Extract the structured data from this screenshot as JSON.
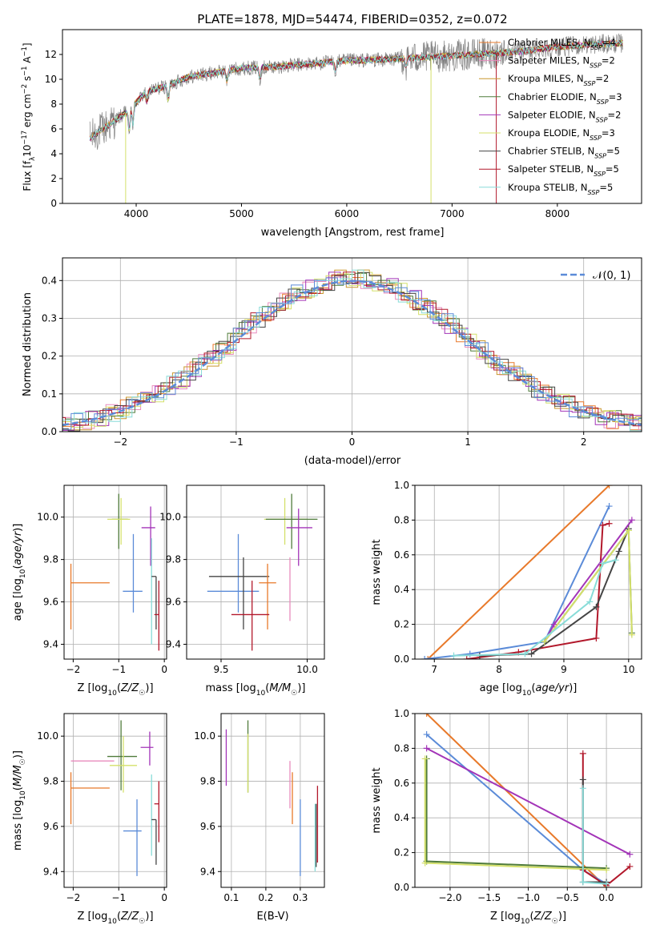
{
  "colors": {
    "orange": "#e8792a",
    "pink": "#e88bbd",
    "amber": "#c9972e",
    "olive": "#4f7b3a",
    "purple": "#a334b8",
    "yellow": "#d4e06a",
    "dgray": "#444444",
    "red": "#b2182b",
    "cyan": "#88dcd8",
    "blue": "#5b8bd8",
    "data_gray": "#808080"
  },
  "chart_data": [
    {
      "type": "line",
      "title": "PLATE=1878, MJD=54474, FIBERID=0352, z=0.072",
      "xlabel": "wavelength [Angstrom, rest frame]",
      "ylabel": "Flux [f_λ 10^-17 erg cm^-2 s^-1 A^-1]",
      "xlim": [
        3300,
        8800
      ],
      "ylim": [
        0,
        14
      ],
      "xticks": [
        "4000",
        "5000",
        "6000",
        "7000",
        "8000"
      ],
      "yticks": [
        "0",
        "2",
        "4",
        "6",
        "8",
        "10",
        "12"
      ],
      "legend_position": "right",
      "series": [
        {
          "name": "Chabrier MILES, N_SSP=4",
          "color": "orange"
        },
        {
          "name": "Salpeter MILES, N_SSP=2",
          "color": "pink"
        },
        {
          "name": "Kroupa MILES, N_SSP=2",
          "color": "amber"
        },
        {
          "name": "Chabrier ELODIE, N_SSP=3",
          "color": "olive"
        },
        {
          "name": "Salpeter ELODIE, N_SSP=2",
          "color": "purple"
        },
        {
          "name": "Kroupa ELODIE, N_SSP=3",
          "color": "yellow"
        },
        {
          "name": "Chabrier STELIB, N_SSP=5",
          "color": "dgray"
        },
        {
          "name": "Salpeter STELIB, N_SSP=5",
          "color": "red"
        },
        {
          "name": "Kroupa STELIB, N_SSP=5",
          "color": "cyan"
        }
      ],
      "approx_continuum": {
        "x": [
          3550,
          3700,
          3900,
          4100,
          4300,
          4500,
          4800,
          5000,
          5300,
          5600,
          6000,
          6400,
          6800,
          7200,
          7600,
          8000,
          8300,
          8600
        ],
        "y": [
          5.2,
          6.1,
          7.3,
          9.0,
          9.5,
          10.2,
          10.6,
          10.9,
          11.0,
          11.2,
          11.5,
          11.6,
          11.8,
          12.0,
          12.2,
          12.6,
          12.8,
          12.9
        ]
      }
    },
    {
      "type": "line",
      "xlabel": "(data-model)/error",
      "ylabel": "Normed distribution",
      "xlim": [
        -2.5,
        2.5
      ],
      "ylim": [
        0,
        0.46
      ],
      "xticks": [
        "−2",
        "−1",
        "0",
        "1",
        "2"
      ],
      "yticks": [
        "0.0",
        "0.1",
        "0.2",
        "0.3",
        "0.4"
      ],
      "grid": true,
      "legend_position": "top-right",
      "reference_label": "𝒩(0, 1)",
      "reference_color": "blue",
      "histogram_bin_width": 0.1
    },
    {
      "type": "scatter",
      "xlabel": "Z [log10(Z/Z☉)]",
      "ylabel": "age [log10(age/yr)]",
      "xlim": [
        -2.2,
        0.05
      ],
      "ylim": [
        9.33,
        10.15
      ],
      "xticks": [
        "−2",
        "−1",
        "0"
      ],
      "yticks": [
        "9.4",
        "9.6",
        "9.8",
        "10.0"
      ],
      "grid": true,
      "points": [
        {
          "color": "orange",
          "x": -2.05,
          "y": 9.69,
          "xerr": [
            0,
            0.85
          ],
          "yerr": [
            0.22,
            0.09
          ]
        },
        {
          "color": "olive",
          "x": -1.0,
          "y": 9.99,
          "xerr": [
            0.15,
            0.2
          ],
          "yerr": [
            0.14,
            0.12
          ]
        },
        {
          "color": "yellow",
          "x": -0.95,
          "y": 9.99,
          "xerr": [
            0.3,
            0.2
          ],
          "yerr": [
            0.12,
            0.1
          ]
        },
        {
          "color": "blue",
          "x": -0.68,
          "y": 9.65,
          "xerr": [
            0.23,
            0.2
          ],
          "yerr": [
            0.1,
            0.27
          ]
        },
        {
          "color": "purple",
          "x": -0.3,
          "y": 9.95,
          "xerr": [
            0.2,
            0.1
          ],
          "yerr": [
            0.18,
            0.1
          ]
        },
        {
          "color": "cyan",
          "x": -0.28,
          "y": 9.65,
          "xerr": [
            0,
            0
          ],
          "yerr": [
            0.25,
            0.25
          ]
        },
        {
          "color": "dgray",
          "x": -0.18,
          "y": 9.72,
          "xerr": [
            0.1,
            0
          ],
          "yerr": [
            0.25,
            0
          ]
        },
        {
          "color": "red",
          "x": -0.12,
          "y": 9.54,
          "xerr": [
            0.1,
            0
          ],
          "yerr": [
            0.17,
            0.16
          ]
        }
      ]
    },
    {
      "type": "scatter",
      "xlabel": "mass [log10(M/M☉)]",
      "ylabel": "",
      "xlim": [
        9.3,
        10.1
      ],
      "ylim": [
        9.33,
        10.15
      ],
      "xticks": [
        "9.5",
        "10.0"
      ],
      "yticks": [
        "9.4",
        "9.6",
        "9.8",
        "10.0"
      ],
      "grid": true,
      "points": [
        {
          "color": "blue",
          "x": 9.6,
          "y": 9.65,
          "xerr": [
            0.18,
            0.12
          ],
          "yerr": [
            0.1,
            0.27
          ]
        },
        {
          "color": "dgray",
          "x": 9.63,
          "y": 9.72,
          "xerr": [
            0.2,
            0.15
          ],
          "yerr": [
            0.25,
            0.09
          ]
        },
        {
          "color": "orange",
          "x": 9.77,
          "y": 9.69,
          "xerr": [
            0.05,
            0.05
          ],
          "yerr": [
            0.22,
            0.09
          ]
        },
        {
          "color": "red",
          "x": 9.68,
          "y": 9.54,
          "xerr": [
            0.12,
            0.1
          ],
          "yerr": [
            0.17,
            0.16
          ]
        },
        {
          "color": "yellow",
          "x": 9.87,
          "y": 9.99,
          "xerr": [
            0.12,
            0.13
          ],
          "yerr": [
            0.12,
            0.1
          ]
        },
        {
          "color": "olive",
          "x": 9.91,
          "y": 9.99,
          "xerr": [
            0.15,
            0.15
          ],
          "yerr": [
            0.14,
            0.12
          ]
        },
        {
          "color": "pink",
          "x": 9.9,
          "y": 9.69,
          "xerr": [
            0,
            0
          ],
          "yerr": [
            0.18,
            0.12
          ]
        },
        {
          "color": "purple",
          "x": 9.95,
          "y": 9.95,
          "xerr": [
            0.07,
            0.08
          ],
          "yerr": [
            0.18,
            0.09
          ]
        }
      ]
    },
    {
      "type": "line",
      "xlabel": "age [log10(age/yr)]",
      "ylabel": "mass weight",
      "xlim": [
        6.7,
        10.2
      ],
      "ylim": [
        0,
        1
      ],
      "xticks": [
        "7",
        "8",
        "9",
        "10"
      ],
      "yticks": [
        "0.0",
        "0.2",
        "0.4",
        "0.6",
        "0.8",
        "1.0"
      ],
      "grid": true,
      "series": [
        {
          "color": "orange",
          "x": [
            6.9,
            9.7
          ],
          "y": [
            0.0,
            1.0
          ]
        },
        {
          "color": "blue",
          "x": [
            6.85,
            7.55,
            8.7,
            9.7
          ],
          "y": [
            0.0,
            0.03,
            0.1,
            0.88
          ]
        },
        {
          "color": "red",
          "x": [
            7.5,
            8.3,
            9.5,
            9.6,
            9.7
          ],
          "y": [
            0.0,
            0.04,
            0.12,
            0.77,
            0.78
          ]
        },
        {
          "color": "purple",
          "x": [
            8.7,
            8.85,
            10.05
          ],
          "y": [
            0.1,
            0.2,
            0.8
          ]
        },
        {
          "color": "dgray",
          "x": [
            7.7,
            8.5,
            9.5,
            9.85,
            10.0
          ],
          "y": [
            0.02,
            0.03,
            0.3,
            0.62,
            0.75
          ]
        },
        {
          "color": "olive",
          "x": [
            8.7,
            10.0,
            10.05
          ],
          "y": [
            0.1,
            0.74,
            0.15
          ]
        },
        {
          "color": "yellow",
          "x": [
            8.7,
            10.0,
            10.05
          ],
          "y": [
            0.1,
            0.74,
            0.14
          ]
        },
        {
          "color": "cyan",
          "x": [
            7.3,
            8.4,
            9.4,
            9.6,
            9.8
          ],
          "y": [
            0.02,
            0.03,
            0.33,
            0.55,
            0.57
          ]
        }
      ]
    },
    {
      "type": "scatter",
      "xlabel": "Z [log10(Z/Z☉)]",
      "ylabel": "mass [log10(M/M☉)]",
      "xlim": [
        -2.2,
        0.05
      ],
      "ylim": [
        9.33,
        10.1
      ],
      "xticks": [
        "−2",
        "−1",
        "0"
      ],
      "yticks": [
        "9.4",
        "9.6",
        "9.8",
        "10.0"
      ],
      "grid": true,
      "points": [
        {
          "color": "orange",
          "x": -2.05,
          "y": 9.77,
          "xerr": [
            0,
            0.85
          ],
          "yerr": [
            0.16,
            0.07
          ]
        },
        {
          "color": "pink",
          "x": -2.05,
          "y": 9.89,
          "xerr": [
            0,
            0.95
          ],
          "yerr": [
            0,
            0
          ]
        },
        {
          "color": "olive",
          "x": -0.95,
          "y": 9.91,
          "xerr": [
            0.3,
            0.35
          ],
          "yerr": [
            0.15,
            0.16
          ]
        },
        {
          "color": "yellow",
          "x": -0.9,
          "y": 9.87,
          "xerr": [
            0.3,
            0.3
          ],
          "yerr": [
            0.12,
            0.13
          ]
        },
        {
          "color": "blue",
          "x": -0.6,
          "y": 9.58,
          "xerr": [
            0.3,
            0.1
          ],
          "yerr": [
            0.2,
            0.14
          ]
        },
        {
          "color": "purple",
          "x": -0.32,
          "y": 9.95,
          "xerr": [
            0.2,
            0.08
          ],
          "yerr": [
            0.08,
            0.07
          ]
        },
        {
          "color": "cyan",
          "x": -0.28,
          "y": 9.65,
          "xerr": [
            0,
            0
          ],
          "yerr": [
            0.18,
            0.18
          ]
        },
        {
          "color": "dgray",
          "x": -0.18,
          "y": 9.63,
          "xerr": [
            0.1,
            0
          ],
          "yerr": [
            0.2,
            0
          ]
        },
        {
          "color": "red",
          "x": -0.12,
          "y": 9.7,
          "xerr": [
            0.1,
            0
          ],
          "yerr": [
            0.17,
            0.1
          ]
        }
      ]
    },
    {
      "type": "scatter",
      "xlabel": "E(B-V)",
      "ylabel": "",
      "xlim": [
        0.07,
        0.37
      ],
      "ylim": [
        9.33,
        10.1
      ],
      "xticks": [
        "0.1",
        "0.2",
        "0.3"
      ],
      "yticks": [
        "9.4",
        "9.6",
        "9.8",
        "10.0"
      ],
      "grid": true,
      "points": [
        {
          "color": "purple",
          "x": 0.085,
          "y": 9.9,
          "yerr": [
            0.12,
            0.13
          ]
        },
        {
          "color": "olive",
          "x": 0.148,
          "y": 9.9,
          "yerr": [
            0.15,
            0.17
          ]
        },
        {
          "color": "yellow",
          "x": 0.148,
          "y": 9.88,
          "yerr": [
            0.13,
            0.13
          ]
        },
        {
          "color": "pink",
          "x": 0.27,
          "y": 9.8,
          "yerr": [
            0.12,
            0.09
          ]
        },
        {
          "color": "orange",
          "x": 0.277,
          "y": 9.77,
          "yerr": [
            0.16,
            0.07
          ]
        },
        {
          "color": "blue",
          "x": 0.3,
          "y": 9.55,
          "yerr": [
            0.17,
            0.17
          ]
        },
        {
          "color": "dgray",
          "x": 0.346,
          "y": 9.62,
          "yerr": [
            0.2,
            0.08
          ]
        },
        {
          "color": "red",
          "x": 0.35,
          "y": 9.62,
          "yerr": [
            0.18,
            0.16
          ]
        },
        {
          "color": "cyan",
          "x": 0.343,
          "y": 9.6,
          "yerr": [
            0.2,
            0.1
          ]
        }
      ]
    },
    {
      "type": "line",
      "xlabel": "Z [log10(Z/Z☉)]",
      "ylabel": "mass weight",
      "xlim": [
        -2.45,
        0.45
      ],
      "ylim": [
        0,
        1
      ],
      "xticks": [
        "−2.0",
        "−1.5",
        "−1.0",
        "−0.5",
        "0.0"
      ],
      "yticks": [
        "0.0",
        "0.2",
        "0.4",
        "0.6",
        "0.8",
        "1.0"
      ],
      "grid": true,
      "series": [
        {
          "color": "orange",
          "x": [
            -2.3,
            0.0
          ],
          "y": [
            1.0,
            0.0
          ]
        },
        {
          "color": "blue",
          "x": [
            -2.3,
            -0.3,
            0.0
          ],
          "y": [
            0.88,
            0.1,
            0.02
          ]
        },
        {
          "color": "purple",
          "x": [
            -2.3,
            0.3
          ],
          "y": [
            0.8,
            0.19
          ]
        },
        {
          "color": "olive",
          "x": [
            -2.3,
            -2.3,
            0.0
          ],
          "y": [
            0.74,
            0.15,
            0.11
          ]
        },
        {
          "color": "yellow",
          "x": [
            -2.32,
            -2.32,
            0.0
          ],
          "y": [
            0.74,
            0.14,
            0.1
          ]
        },
        {
          "color": "red",
          "x": [
            -0.3,
            -0.3,
            0.0,
            0.3
          ],
          "y": [
            0.77,
            0.1,
            0.01,
            0.12
          ]
        },
        {
          "color": "dgray",
          "x": [
            -0.3,
            -0.3,
            0.0
          ],
          "y": [
            0.62,
            0.03,
            0.03
          ]
        },
        {
          "color": "cyan",
          "x": [
            -0.3,
            -0.3,
            0.0
          ],
          "y": [
            0.57,
            0.03,
            0.02
          ]
        }
      ]
    }
  ]
}
